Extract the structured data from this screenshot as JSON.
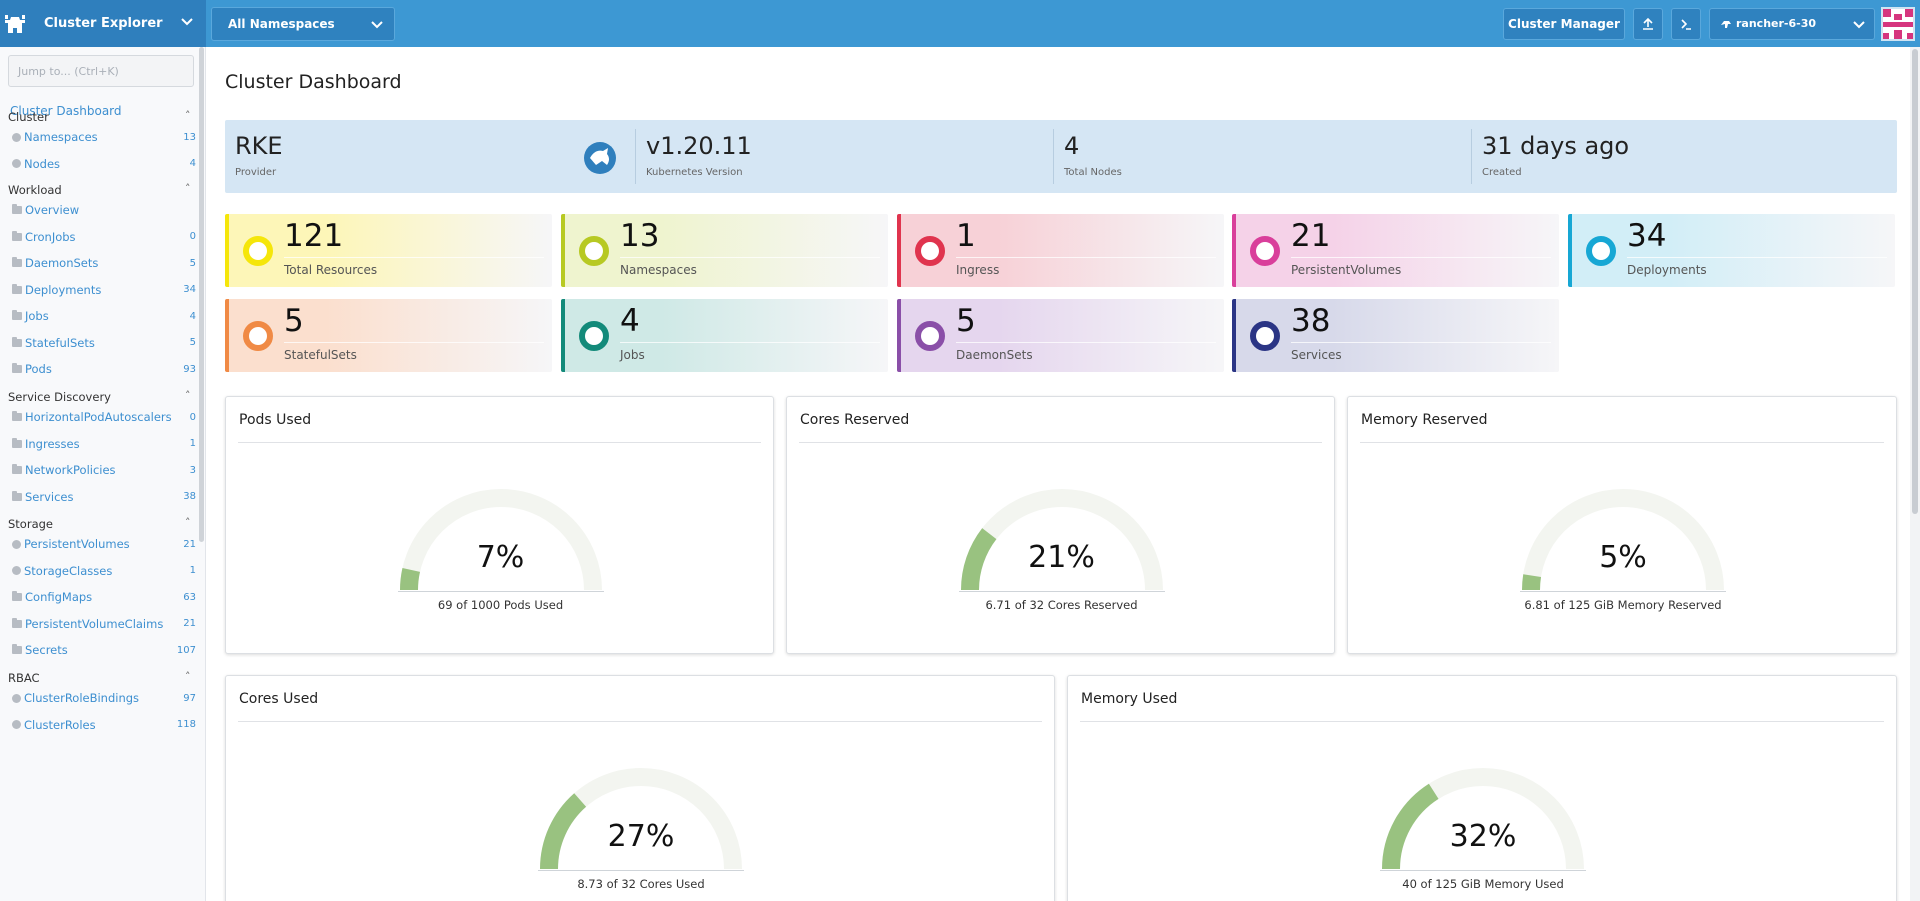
{
  "header": {
    "title": "Cluster Explorer",
    "namespace_select": "All Namespaces",
    "cluster_manager_label": "Cluster Manager",
    "cluster_name": "rancher-6-30",
    "icons": [
      "cow-logo-icon",
      "upload-icon",
      "terminal-icon",
      "chevron-down-icon"
    ],
    "accent": "#3d98d3"
  },
  "sidebar": {
    "jump_placeholder": "Jump to... (Ctrl+K)",
    "dashboard_link": "Cluster Dashboard",
    "groups": [
      {
        "title": "Cluster",
        "items": [
          {
            "label": "Namespaces",
            "count": "13",
            "icon": "circle"
          },
          {
            "label": "Nodes",
            "count": "4",
            "icon": "circle"
          }
        ]
      },
      {
        "title": "Workload",
        "items": [
          {
            "label": "Overview",
            "count": "",
            "icon": "folder"
          },
          {
            "label": "CronJobs",
            "count": "0",
            "icon": "folder"
          },
          {
            "label": "DaemonSets",
            "count": "5",
            "icon": "folder"
          },
          {
            "label": "Deployments",
            "count": "34",
            "icon": "folder"
          },
          {
            "label": "Jobs",
            "count": "4",
            "icon": "folder"
          },
          {
            "label": "StatefulSets",
            "count": "5",
            "icon": "folder"
          },
          {
            "label": "Pods",
            "count": "93",
            "icon": "folder"
          }
        ]
      },
      {
        "title": "Service Discovery",
        "items": [
          {
            "label": "HorizontalPodAutoscalers",
            "count": "0",
            "icon": "folder"
          },
          {
            "label": "Ingresses",
            "count": "1",
            "icon": "folder"
          },
          {
            "label": "NetworkPolicies",
            "count": "3",
            "icon": "folder"
          },
          {
            "label": "Services",
            "count": "38",
            "icon": "folder"
          }
        ]
      },
      {
        "title": "Storage",
        "items": [
          {
            "label": "PersistentVolumes",
            "count": "21",
            "icon": "circle"
          },
          {
            "label": "StorageClasses",
            "count": "1",
            "icon": "circle"
          },
          {
            "label": "ConfigMaps",
            "count": "63",
            "icon": "folder"
          },
          {
            "label": "PersistentVolumeClaims",
            "count": "21",
            "icon": "folder"
          },
          {
            "label": "Secrets",
            "count": "107",
            "icon": "folder"
          }
        ]
      },
      {
        "title": "RBAC",
        "items": [
          {
            "label": "ClusterRoleBindings",
            "count": "97",
            "icon": "circle"
          },
          {
            "label": "ClusterRoles",
            "count": "118",
            "icon": "circle"
          }
        ]
      }
    ]
  },
  "main": {
    "title": "Cluster Dashboard",
    "info": [
      {
        "value": "RKE",
        "label": "Provider"
      },
      {
        "value": "v1.20.11",
        "label": "Kubernetes Version"
      },
      {
        "value": "4",
        "label": "Total Nodes"
      },
      {
        "value": "31 days ago",
        "label": "Created"
      }
    ],
    "counts": [
      {
        "value": "121",
        "label": "Total Resources",
        "color": "#f5e60a",
        "bg": "#fdf6b8"
      },
      {
        "value": "13",
        "label": "Namespaces",
        "color": "#b7c923",
        "bg": "#eff4cf"
      },
      {
        "value": "1",
        "label": "Ingress",
        "color": "#e0344e",
        "bg": "#f7d1d7"
      },
      {
        "value": "21",
        "label": "PersistentVolumes",
        "color": "#d93f9b",
        "bg": "#f5d2e8"
      },
      {
        "value": "34",
        "label": "Deployments",
        "color": "#17a7d4",
        "bg": "#d2eef7"
      },
      {
        "value": "5",
        "label": "StatefulSets",
        "color": "#f08a45",
        "bg": "#fbdfce"
      },
      {
        "value": "4",
        "label": "Jobs",
        "color": "#138a7a",
        "bg": "#cfe9e6"
      },
      {
        "value": "5",
        "label": "DaemonSets",
        "color": "#8a4fa8",
        "bg": "#e5d6ee"
      },
      {
        "value": "38",
        "label": "Services",
        "color": "#2b3585",
        "bg": "#d7d9ea"
      }
    ],
    "gauges": [
      {
        "title": "Pods Used",
        "percent_label": "7%",
        "fraction": 0.07,
        "caption": "69 of 1000 Pods Used"
      },
      {
        "title": "Cores Reserved",
        "percent_label": "21%",
        "fraction": 0.21,
        "caption": "6.71 of 32 Cores Reserved"
      },
      {
        "title": "Memory Reserved",
        "percent_label": "5%",
        "fraction": 0.05,
        "caption": "6.81 of 125 GiB Memory Reserved"
      },
      {
        "title": "Cores Used",
        "percent_label": "27%",
        "fraction": 0.27,
        "caption": "8.73 of 32 Cores Used"
      },
      {
        "title": "Memory Used",
        "percent_label": "32%",
        "fraction": 0.32,
        "caption": "40 of 125 GiB Memory Used"
      }
    ],
    "gauge_color": "#99c280",
    "gauge_track": "#f3f5f0"
  }
}
